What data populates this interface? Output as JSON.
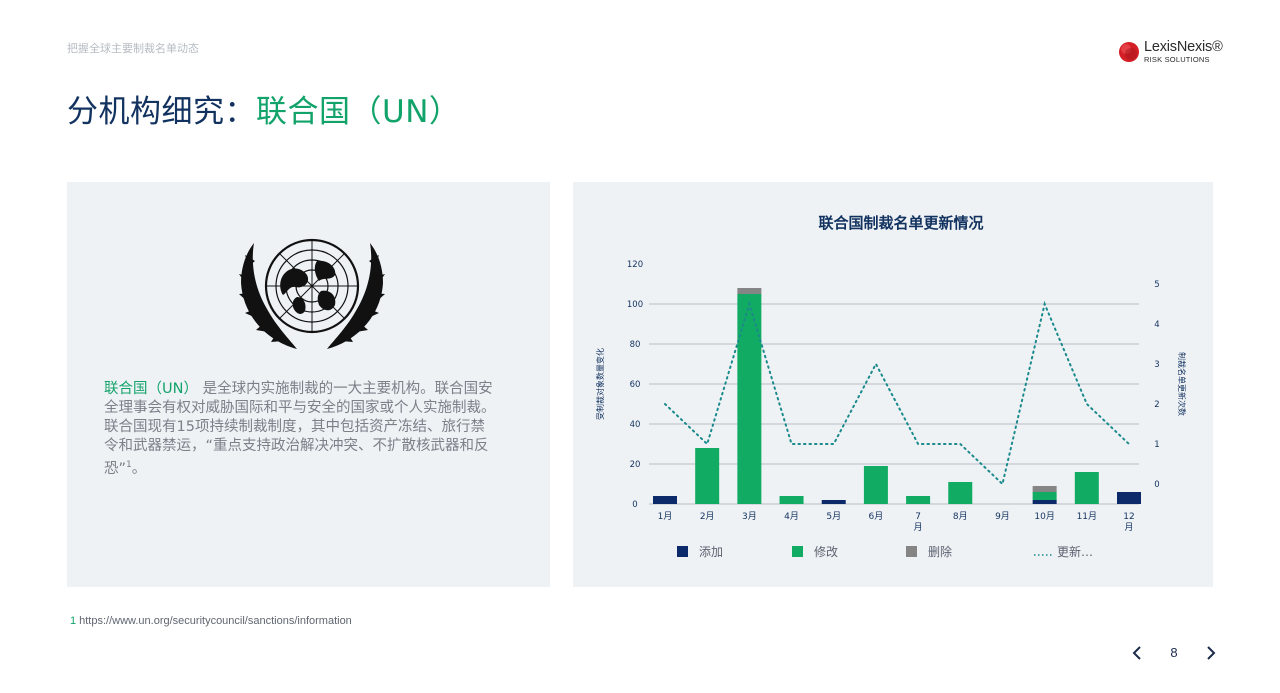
{
  "header": {
    "kicker": "把握全球主要制裁名单动态",
    "title_prefix": "分机构细究：",
    "title_highlight": "联合国（UN）",
    "logo": {
      "name": "LexisNexis®",
      "sub": "RISK SOLUTIONS",
      "icon": "lexisnexis-logo-mark"
    }
  },
  "left_panel": {
    "emblem_icon": "un-emblem-icon",
    "desc_highlight": "联合国（UN）",
    "desc_body": "是全球内实施制裁的一大主要机构。联合国安全理事会有权对威胁国际和平与安全的国家或个人实施制裁。联合国现有15项持续制裁制度，其中包括资产冻结、旅行禁令和武器禁运，“重点支持政治解决冲突、不扩散核武器和反恐”",
    "desc_sup": "1",
    "desc_end": "。"
  },
  "chart_data": {
    "type": "bar",
    "title": "联合国制裁名单更新情况",
    "categories": [
      "1月",
      "2月",
      "3月",
      "4月",
      "5月",
      "6月",
      "7\n月",
      "8月",
      "9月",
      "10月",
      "11月",
      "12\n月"
    ],
    "series": [
      {
        "name": "添加",
        "type": "bar",
        "stack": "main",
        "color": "#0c2a6a",
        "values": [
          4,
          0,
          0,
          0,
          2,
          0,
          0,
          0,
          0,
          2,
          0,
          6
        ]
      },
      {
        "name": "修改",
        "type": "bar",
        "stack": "main",
        "color": "#12ab63",
        "values": [
          0,
          28,
          105,
          4,
          0,
          19,
          4,
          11,
          0,
          4,
          16,
          0
        ]
      },
      {
        "name": "删除",
        "type": "bar",
        "stack": "main",
        "color": "#858585",
        "values": [
          0,
          0,
          3,
          0,
          0,
          0,
          0,
          0,
          0,
          3,
          0,
          0
        ]
      },
      {
        "name": "更新…",
        "type": "line",
        "axis": "right",
        "style": "dotted",
        "color": "#1a8a8c",
        "values": [
          2,
          1,
          4.5,
          1,
          1,
          3,
          1,
          1,
          0,
          4.5,
          2,
          1
        ]
      }
    ],
    "ylabel": "受制裁对象数量变化",
    "y2label": "制裁名单更新次数",
    "ylim": [
      0,
      120
    ],
    "y2lim": [
      0,
      5
    ],
    "yticks": [
      0,
      20,
      40,
      60,
      80,
      100,
      120
    ],
    "y2ticks": [
      0,
      1,
      2,
      3,
      4,
      5
    ],
    "grid": true,
    "legend_position": "bottom"
  },
  "footnote": {
    "num": "1",
    "text": "https://www.un.org/securitycouncil/sanctions/information"
  },
  "pager": {
    "page": "8",
    "prev_icon": "chevron-left-icon",
    "next_icon": "chevron-right-icon"
  }
}
